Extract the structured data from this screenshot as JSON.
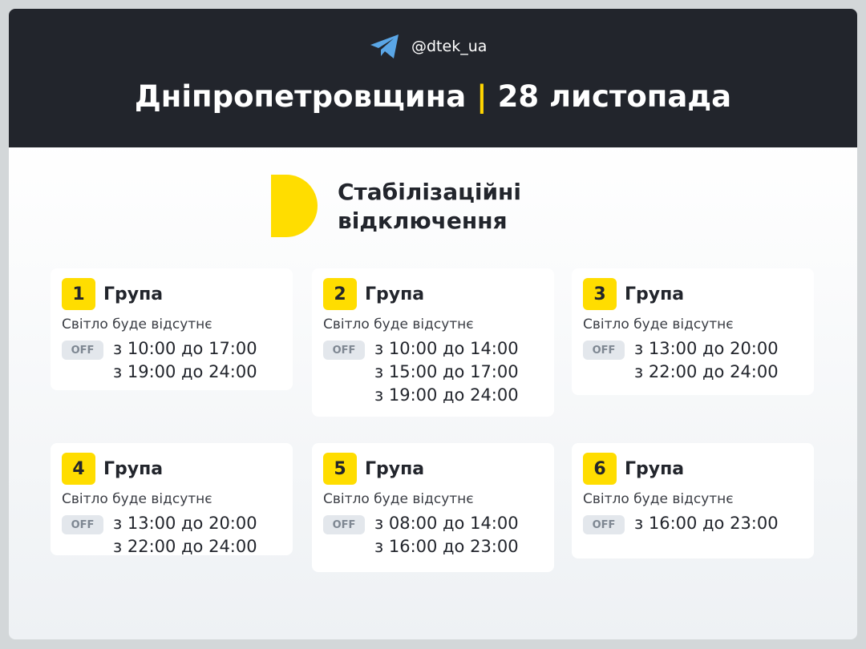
{
  "header": {
    "channel": "@dtek_ua",
    "region": "Дніпропетровщина",
    "separator": "|",
    "date": "28 листопада",
    "accent": "#ffdd00"
  },
  "subtitle": {
    "line1": "Стабілізаційні",
    "line2": "відключення"
  },
  "groups": [
    {
      "number": "1",
      "label": "Група",
      "status": "Світло буде відсутнє",
      "badge": "OFF",
      "times": [
        "з 10:00 до 17:00",
        "з 19:00 до 24:00"
      ]
    },
    {
      "number": "2",
      "label": "Група",
      "status": "Світло буде відсутнє",
      "badge": "OFF",
      "times": [
        "з 10:00 до 14:00",
        "з 15:00 до 17:00",
        "з 19:00 до 24:00"
      ]
    },
    {
      "number": "3",
      "label": "Група",
      "status": "Світло буде відсутнє",
      "badge": "OFF",
      "times": [
        "з 13:00 до 20:00",
        "з 22:00 до 24:00"
      ]
    },
    {
      "number": "4",
      "label": "Група",
      "status": "Світло буде відсутнє",
      "badge": "OFF",
      "times": [
        "з 13:00 до 20:00",
        "з 22:00 до 24:00"
      ]
    },
    {
      "number": "5",
      "label": "Група",
      "status": "Світло буде відсутнє",
      "badge": "OFF",
      "times": [
        "з 08:00 до 14:00",
        "з 16:00 до 23:00"
      ]
    },
    {
      "number": "6",
      "label": "Група",
      "status": "Світло буде відсутнє",
      "badge": "OFF",
      "times": [
        "з 16:00 до 23:00"
      ]
    }
  ]
}
